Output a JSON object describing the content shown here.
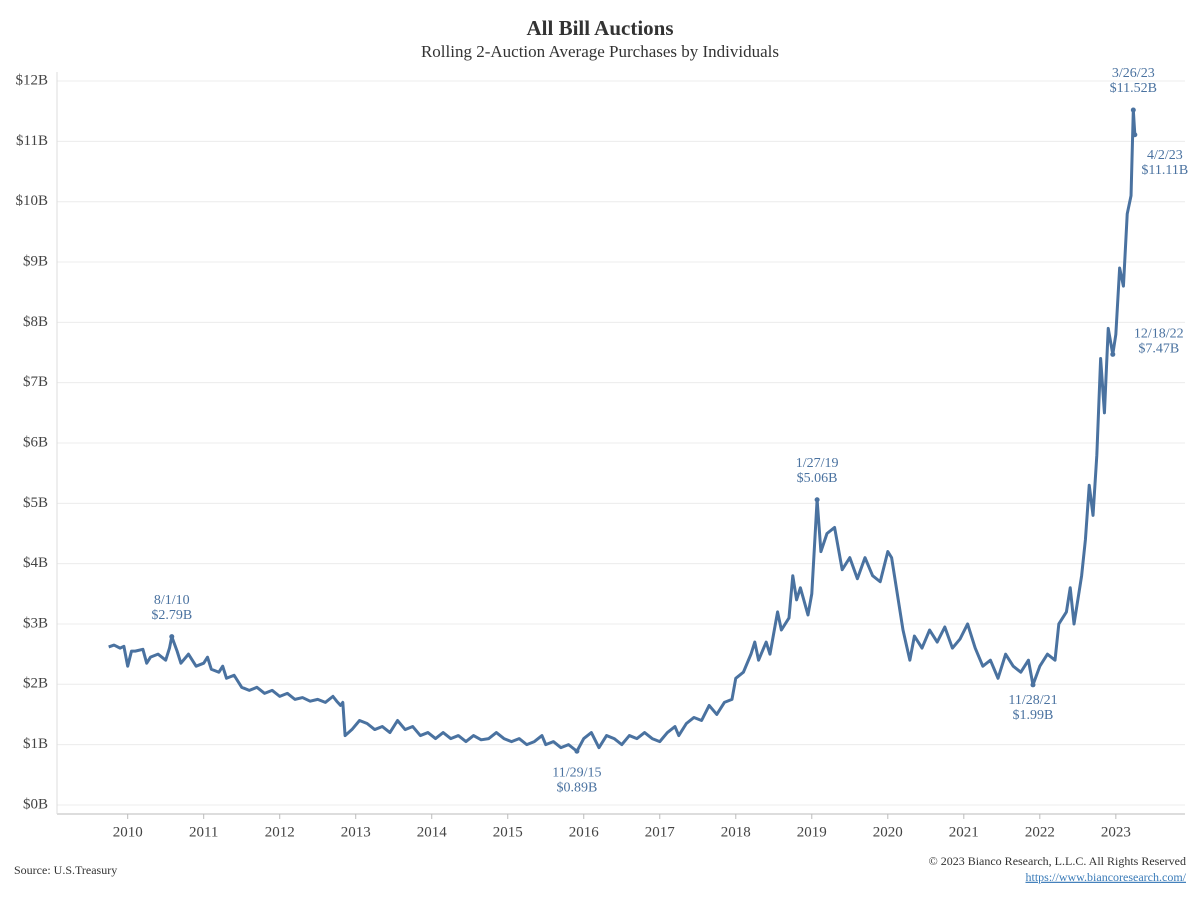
{
  "chart_data": {
    "type": "line",
    "title": "All Bill Auctions",
    "subtitle": "Rolling 2-Auction Average Purchases by Individuals",
    "source": "Source: U.S.Treasury",
    "copyright": "© 2023 Bianco Research, L.L.C. All Rights Reserved",
    "url": "https://www.biancoresearch.com/",
    "xlim": [
      2009.07,
      2023.91
    ],
    "xticks": [
      2010,
      2011,
      2012,
      2013,
      2014,
      2015,
      2016,
      2017,
      2018,
      2019,
      2020,
      2021,
      2022,
      2023
    ],
    "ylim": [
      -0.15,
      12.15
    ],
    "yticks": [
      {
        "value": 0,
        "label": "$0B"
      },
      {
        "value": 1,
        "label": "$1B"
      },
      {
        "value": 2,
        "label": "$2B"
      },
      {
        "value": 3,
        "label": "$3B"
      },
      {
        "value": 4,
        "label": "$4B"
      },
      {
        "value": 5,
        "label": "$5B"
      },
      {
        "value": 6,
        "label": "$6B"
      },
      {
        "value": 7,
        "label": "$7B"
      },
      {
        "value": 8,
        "label": "$8B"
      },
      {
        "value": 9,
        "label": "$9B"
      },
      {
        "value": 10,
        "label": "$10B"
      },
      {
        "value": 11,
        "label": "$11B"
      },
      {
        "value": 12,
        "label": "$12B"
      }
    ],
    "grid": true,
    "series": [
      {
        "color": "#4a72a0",
        "x": [
          2009.75,
          2009.82,
          2009.9,
          2009.95,
          2010.0,
          2010.05,
          2010.1,
          2010.2,
          2010.25,
          2010.3,
          2010.4,
          2010.5,
          2010.55,
          2010.58,
          2010.65,
          2010.7,
          2010.8,
          2010.9,
          2011.0,
          2011.05,
          2011.1,
          2011.2,
          2011.25,
          2011.3,
          2011.4,
          2011.5,
          2011.6,
          2011.7,
          2011.8,
          2011.9,
          2012.0,
          2012.1,
          2012.2,
          2012.3,
          2012.4,
          2012.5,
          2012.6,
          2012.7,
          2012.75,
          2012.8,
          2012.83,
          2012.86,
          2012.95,
          2013.05,
          2013.15,
          2013.25,
          2013.35,
          2013.45,
          2013.55,
          2013.65,
          2013.75,
          2013.85,
          2013.95,
          2014.05,
          2014.15,
          2014.25,
          2014.35,
          2014.45,
          2014.55,
          2014.65,
          2014.75,
          2014.85,
          2014.95,
          2015.05,
          2015.15,
          2015.25,
          2015.35,
          2015.45,
          2015.5,
          2015.6,
          2015.7,
          2015.8,
          2015.91,
          2016.0,
          2016.1,
          2016.2,
          2016.3,
          2016.4,
          2016.5,
          2016.6,
          2016.7,
          2016.8,
          2016.9,
          2017.0,
          2017.1,
          2017.2,
          2017.25,
          2017.35,
          2017.45,
          2017.55,
          2017.65,
          2017.75,
          2017.85,
          2017.95,
          2018.0,
          2018.1,
          2018.2,
          2018.25,
          2018.3,
          2018.4,
          2018.45,
          2018.55,
          2018.6,
          2018.7,
          2018.75,
          2018.8,
          2018.85,
          2018.95,
          2019.0,
          2019.07,
          2019.12,
          2019.2,
          2019.3,
          2019.4,
          2019.5,
          2019.6,
          2019.7,
          2019.8,
          2019.9,
          2020.0,
          2020.05,
          2020.15,
          2020.2,
          2020.29,
          2020.35,
          2020.45,
          2020.55,
          2020.65,
          2020.75,
          2020.85,
          2020.95,
          2021.05,
          2021.15,
          2021.25,
          2021.35,
          2021.45,
          2021.55,
          2021.65,
          2021.75,
          2021.85,
          2021.91,
          2022.0,
          2022.1,
          2022.2,
          2022.25,
          2022.35,
          2022.4,
          2022.45,
          2022.55,
          2022.6,
          2022.65,
          2022.7,
          2022.75,
          2022.8,
          2022.85,
          2022.9,
          2022.96,
          2023.0,
          2023.05,
          2023.1,
          2023.15,
          2023.2,
          2023.23,
          2023.25
        ],
        "values": [
          2.62,
          2.65,
          2.6,
          2.63,
          2.3,
          2.55,
          2.55,
          2.58,
          2.35,
          2.45,
          2.5,
          2.4,
          2.6,
          2.79,
          2.55,
          2.35,
          2.5,
          2.3,
          2.35,
          2.45,
          2.25,
          2.2,
          2.3,
          2.1,
          2.15,
          1.95,
          1.9,
          1.95,
          1.85,
          1.9,
          1.8,
          1.85,
          1.75,
          1.78,
          1.72,
          1.75,
          1.7,
          1.8,
          1.72,
          1.65,
          1.7,
          1.15,
          1.25,
          1.4,
          1.35,
          1.25,
          1.3,
          1.2,
          1.4,
          1.25,
          1.3,
          1.15,
          1.2,
          1.1,
          1.2,
          1.1,
          1.15,
          1.05,
          1.15,
          1.08,
          1.1,
          1.2,
          1.1,
          1.05,
          1.1,
          1.0,
          1.05,
          1.15,
          1.0,
          1.05,
          0.95,
          1.0,
          0.89,
          1.1,
          1.2,
          0.95,
          1.15,
          1.1,
          1.0,
          1.15,
          1.1,
          1.2,
          1.1,
          1.05,
          1.2,
          1.3,
          1.15,
          1.35,
          1.45,
          1.4,
          1.65,
          1.5,
          1.7,
          1.75,
          2.1,
          2.2,
          2.5,
          2.7,
          2.4,
          2.7,
          2.5,
          3.2,
          2.9,
          3.1,
          3.8,
          3.4,
          3.6,
          3.15,
          3.5,
          5.06,
          4.2,
          4.5,
          4.6,
          3.9,
          4.1,
          3.75,
          4.1,
          3.8,
          3.7,
          4.2,
          4.1,
          3.3,
          2.9,
          2.4,
          2.8,
          2.6,
          2.9,
          2.7,
          2.95,
          2.6,
          2.75,
          3.0,
          2.6,
          2.3,
          2.4,
          2.1,
          2.5,
          2.3,
          2.2,
          2.4,
          1.99,
          2.3,
          2.5,
          2.4,
          3.0,
          3.2,
          3.6,
          3.0,
          3.8,
          4.4,
          5.3,
          4.8,
          5.8,
          7.4,
          6.5,
          7.9,
          7.47,
          7.8,
          8.9,
          8.6,
          9.8,
          10.1,
          11.52,
          11.11
        ]
      }
    ],
    "annotations": [
      {
        "date": "8/1/10",
        "label": "$2.79B",
        "x": 2010.58,
        "y": 2.79
      },
      {
        "date": "11/29/15",
        "label": "$0.89B",
        "x": 2015.91,
        "y": 0.89
      },
      {
        "date": "1/27/19",
        "label": "$5.06B",
        "x": 2019.07,
        "y": 5.06
      },
      {
        "date": "11/28/21",
        "label": "$1.99B",
        "x": 2021.91,
        "y": 1.99
      },
      {
        "date": "12/18/22",
        "label": "$7.47B",
        "x": 2022.96,
        "y": 7.47
      },
      {
        "date": "3/26/23",
        "label": "$11.52B",
        "x": 2023.23,
        "y": 11.52
      },
      {
        "date": "4/2/23",
        "label": "$11.11B",
        "x": 2023.25,
        "y": 11.11
      }
    ]
  }
}
